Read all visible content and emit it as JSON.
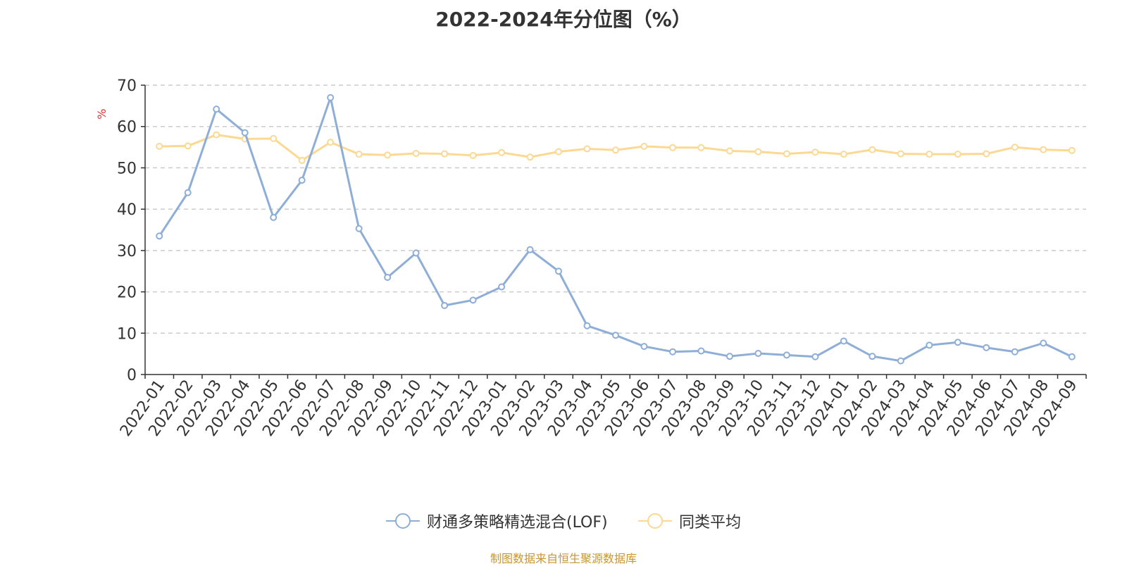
{
  "chart_data": {
    "type": "line",
    "title": "2022-2024年分位图（%）",
    "ylabel": "%",
    "xlabel": "",
    "ylim": [
      0,
      70
    ],
    "yticks": [
      0,
      10,
      20,
      30,
      40,
      50,
      60,
      70
    ],
    "grid": true,
    "legend_position": "bottom",
    "categories": [
      "2022-01",
      "2022-02",
      "2022-03",
      "2022-04",
      "2022-05",
      "2022-06",
      "2022-07",
      "2022-08",
      "2022-09",
      "2022-10",
      "2022-11",
      "2022-12",
      "2023-01",
      "2023-02",
      "2023-03",
      "2023-04",
      "2023-05",
      "2023-06",
      "2023-07",
      "2023-08",
      "2023-09",
      "2023-10",
      "2023-11",
      "2023-12",
      "2024-01",
      "2024-02",
      "2024-03",
      "2024-04",
      "2024-05",
      "2024-06",
      "2024-07",
      "2024-08",
      "2024-09"
    ],
    "series": [
      {
        "name": "财通多策略精选混合(LOF)",
        "color": "#8eaed8",
        "values": [
          33.5,
          44.0,
          64.2,
          58.5,
          38.0,
          47.0,
          67.0,
          35.3,
          23.5,
          29.4,
          16.7,
          18.0,
          21.2,
          30.2,
          25.0,
          11.8,
          9.5,
          6.8,
          5.5,
          5.7,
          4.4,
          5.1,
          4.7,
          4.3,
          8.1,
          4.4,
          3.3,
          7.1,
          7.8,
          6.5,
          5.5,
          7.6,
          4.3
        ]
      },
      {
        "name": "同类平均",
        "color": "#fcd992",
        "values": [
          55.2,
          55.3,
          58.0,
          57.0,
          57.1,
          51.8,
          56.2,
          53.3,
          53.1,
          53.5,
          53.4,
          53.0,
          53.7,
          52.6,
          53.9,
          54.6,
          54.3,
          55.2,
          54.9,
          54.9,
          54.1,
          53.9,
          53.4,
          53.8,
          53.3,
          54.4,
          53.4,
          53.3,
          53.3,
          53.4,
          55.0,
          54.4,
          54.2
        ]
      }
    ]
  },
  "source_note": "制图数据来自恒生聚源数据库"
}
